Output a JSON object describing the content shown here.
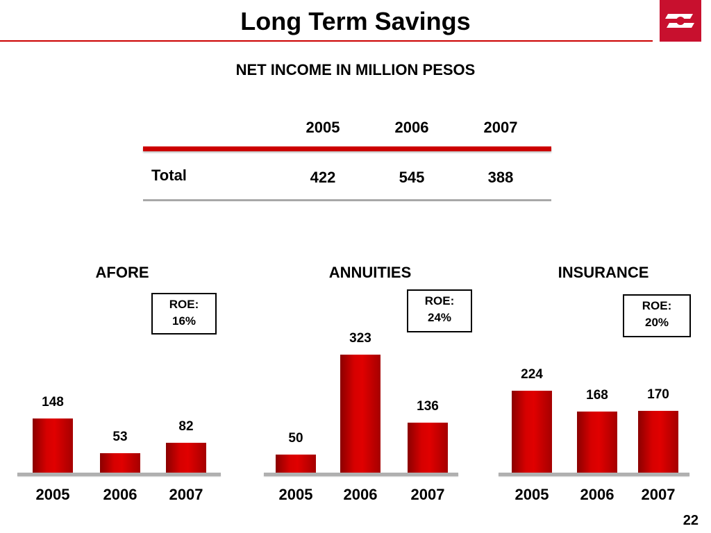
{
  "header": {
    "title": "Long Term Savings",
    "logo_icon": "bank-logo",
    "accent_color": "#c8102e"
  },
  "summary": {
    "subtitle": "NET INCOME IN MILLION PESOS",
    "years": [
      "2005",
      "2006",
      "2007"
    ],
    "row_label": "Total",
    "values": [
      "422",
      "545",
      "388"
    ]
  },
  "chart_data": [
    {
      "type": "bar",
      "title": "AFORE",
      "roe_label": "ROE:",
      "roe_value": "16%",
      "categories": [
        "2005",
        "2006",
        "2007"
      ],
      "values": [
        148,
        53,
        82
      ],
      "ylim": [
        0,
        340
      ]
    },
    {
      "type": "bar",
      "title": "ANNUITIES",
      "roe_label": "ROE:",
      "roe_value": "24%",
      "categories": [
        "2005",
        "2006",
        "2007"
      ],
      "values": [
        50,
        323,
        136
      ],
      "ylim": [
        0,
        340
      ]
    },
    {
      "type": "bar",
      "title": "INSURANCE",
      "roe_label": "ROE:",
      "roe_value": "20%",
      "categories": [
        "2005",
        "2006",
        "2007"
      ],
      "values": [
        224,
        168,
        170
      ],
      "ylim": [
        0,
        340
      ]
    }
  ],
  "footer": {
    "page_number": "22"
  }
}
